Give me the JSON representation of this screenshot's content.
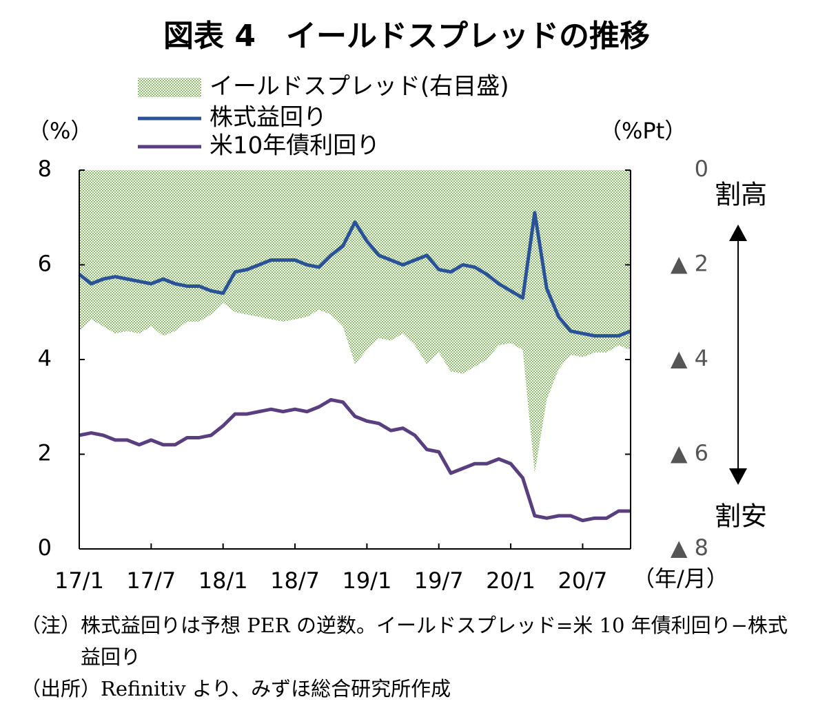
{
  "chart_data": {
    "type": "line",
    "title": "図表 4　イールドスプレッドの推移",
    "y_label": "（%）",
    "y2_label": "（%Pt）",
    "x_label": "（年/月）",
    "annotations": [
      "割高",
      "割安"
    ],
    "categories": [
      "17/1",
      null,
      null,
      null,
      null,
      null,
      "17/7",
      null,
      null,
      null,
      null,
      null,
      "18/1",
      null,
      null,
      null,
      null,
      null,
      "18/7",
      null,
      null,
      null,
      null,
      null,
      "19/1",
      null,
      null,
      null,
      null,
      null,
      "19/7",
      null,
      null,
      null,
      null,
      null,
      "20/1",
      null,
      null,
      null,
      null,
      null,
      "20/7",
      null,
      null,
      null,
      null
    ],
    "ylim": [
      0,
      8
    ],
    "yticks": [
      0,
      2,
      4,
      6,
      8
    ],
    "y2lim": [
      -8,
      0
    ],
    "y2ticks": [
      0,
      {
        "value": -2,
        "label": "▲ 2"
      },
      {
        "value": -4,
        "label": "▲ 4"
      },
      {
        "value": -6,
        "label": "▲ 6"
      },
      {
        "value": -8,
        "label": "▲ 8"
      }
    ],
    "series": [
      {
        "name": "イールドスプレッド(右目盛)",
        "type": "area",
        "axis": "y2",
        "color": "#8cbf6a",
        "values": [
          -3.4,
          -3.15,
          -3.3,
          -3.45,
          -3.4,
          -3.45,
          -3.3,
          -3.5,
          -3.4,
          -3.2,
          -3.2,
          -3.05,
          -2.8,
          -3.0,
          -3.05,
          -3.1,
          -3.15,
          -3.2,
          -3.15,
          -3.1,
          -2.95,
          -3.05,
          -3.3,
          -4.1,
          -3.8,
          -3.55,
          -3.6,
          -3.45,
          -3.7,
          -4.1,
          -3.85,
          -4.25,
          -4.3,
          -4.15,
          -4.0,
          -3.7,
          -3.65,
          -3.8,
          -6.4,
          -4.85,
          -4.2,
          -3.9,
          -3.95,
          -3.85,
          -3.85,
          -3.7,
          -3.8
        ]
      },
      {
        "name": "株式益回り",
        "type": "line",
        "color": "#2a5298",
        "values": [
          5.8,
          5.6,
          5.7,
          5.75,
          5.7,
          5.65,
          5.6,
          5.7,
          5.6,
          5.55,
          5.55,
          5.45,
          5.4,
          5.85,
          5.9,
          6.0,
          6.1,
          6.1,
          6.1,
          6.0,
          5.95,
          6.2,
          6.4,
          6.9,
          6.5,
          6.2,
          6.1,
          6.0,
          6.1,
          6.2,
          5.9,
          5.85,
          6.0,
          5.95,
          5.8,
          5.6,
          5.45,
          5.3,
          7.1,
          5.5,
          4.9,
          4.6,
          4.55,
          4.5,
          4.5,
          4.5,
          4.6
        ]
      },
      {
        "name": "米10年債利回り",
        "type": "line",
        "color": "#5a3f80",
        "values": [
          2.4,
          2.45,
          2.4,
          2.3,
          2.3,
          2.2,
          2.3,
          2.2,
          2.2,
          2.35,
          2.35,
          2.4,
          2.6,
          2.85,
          2.85,
          2.9,
          2.95,
          2.9,
          2.95,
          2.9,
          3.0,
          3.15,
          3.1,
          2.8,
          2.7,
          2.65,
          2.5,
          2.55,
          2.4,
          2.1,
          2.05,
          1.6,
          1.7,
          1.8,
          1.8,
          1.9,
          1.8,
          1.5,
          0.7,
          0.65,
          0.7,
          0.7,
          0.6,
          0.65,
          0.65,
          0.8,
          0.8
        ]
      }
    ]
  },
  "notes": [
    {
      "label": "（注）",
      "text": "株式益回りは予想 PER の逆数。イールドスプレッド=米 10 年債利回り−株式益回り"
    },
    {
      "label": "（出所）",
      "text": "Refinitiv より、みずほ総合研究所作成"
    }
  ]
}
